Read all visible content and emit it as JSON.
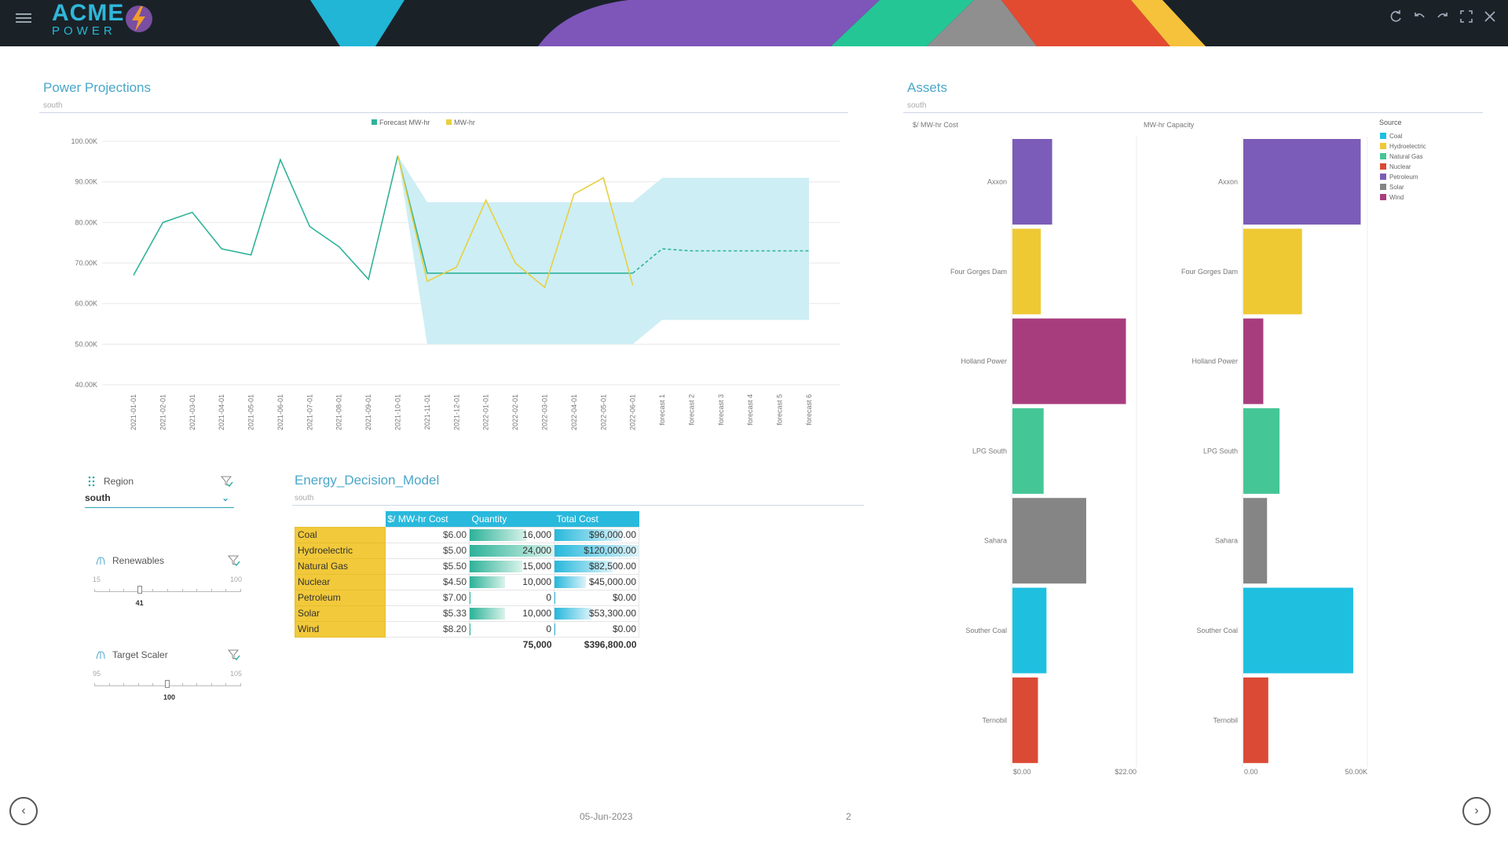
{
  "brand": {
    "line1": "ACME",
    "line2": "POWER"
  },
  "header_icons": [
    "refresh-icon",
    "undo-icon",
    "redo-icon",
    "fullscreen-icon",
    "close-icon"
  ],
  "projections": {
    "title": "Power Projections",
    "subtitle": "south",
    "chart_data": {
      "type": "line",
      "x": [
        "2021-01-01",
        "2021-02-01",
        "2021-03-01",
        "2021-04-01",
        "2021-05-01",
        "2021-06-01",
        "2021-07-01",
        "2021-08-01",
        "2021-09-01",
        "2021-10-01",
        "2021-11-01",
        "2021-12-01",
        "2022-01-01",
        "2022-02-01",
        "2022-03-01",
        "2022-04-01",
        "2022-05-01",
        "2022-06-01",
        "forecast 1",
        "forecast 2",
        "forecast 3",
        "forecast 4",
        "forecast 5",
        "forecast 6"
      ],
      "y_ticks": [
        "100.00K",
        "90.00K",
        "80.00K",
        "70.00K",
        "60.00K",
        "50.00K",
        "40.00K"
      ],
      "ylim": [
        40000,
        100000
      ],
      "legend": [
        "Forecast MW-hr",
        "MW-hr"
      ],
      "series": [
        {
          "name": "Forecast MW-hr",
          "color": "#2fb39a",
          "values": [
            67000,
            80000,
            82500,
            73500,
            72000,
            95500,
            79000,
            74000,
            66000,
            96500,
            67500,
            67500,
            67500,
            67500,
            67500,
            67500,
            67500,
            67500,
            73500,
            73000,
            73000,
            73000,
            73000,
            73000
          ]
        },
        {
          "name": "MW-hr",
          "color": "#e8d040",
          "values": [
            null,
            null,
            null,
            null,
            null,
            null,
            null,
            null,
            null,
            96500,
            65500,
            69000,
            85500,
            70000,
            64000,
            87000,
            91000,
            64500,
            null,
            null,
            null,
            null,
            null,
            null
          ]
        }
      ],
      "band": {
        "color": "#cdeef4",
        "lower": [
          null,
          null,
          null,
          null,
          null,
          null,
          null,
          null,
          null,
          96500,
          50000,
          50000,
          50000,
          50000,
          50000,
          50000,
          50000,
          50000,
          56000,
          56000,
          56000,
          56000,
          56000,
          56000
        ],
        "upper": [
          null,
          null,
          null,
          null,
          null,
          null,
          null,
          null,
          null,
          96500,
          85000,
          85000,
          85000,
          85000,
          85000,
          85000,
          85000,
          85000,
          91000,
          91000,
          91000,
          91000,
          91000,
          91000
        ]
      }
    }
  },
  "filters": {
    "region": {
      "label": "Region",
      "value": "south"
    },
    "renewables": {
      "label": "Renewables",
      "min": "15",
      "max": "100",
      "value": "41",
      "level": 0.31
    },
    "target": {
      "label": "Target Scaler",
      "min": "95",
      "max": "105",
      "value": "100",
      "level": 0.5
    }
  },
  "model": {
    "title": "Energy_Decision_Model",
    "subtitle": "south",
    "columns": [
      "$/ MW-hr Cost",
      "Quantity",
      "Total Cost"
    ],
    "rows": [
      {
        "name": "Coal",
        "cost": "$6.00",
        "qty": "16,000",
        "qty_level": 0.67,
        "total": "$96,000.00",
        "total_level": 0.8
      },
      {
        "name": "Hydroelectric",
        "cost": "$5.00",
        "qty": "24,000",
        "qty_level": 1.0,
        "total": "$120,000.00",
        "total_level": 1.0
      },
      {
        "name": "Natural Gas",
        "cost": "$5.50",
        "qty": "15,000",
        "qty_level": 0.625,
        "total": "$82,500.00",
        "total_level": 0.69
      },
      {
        "name": "Nuclear",
        "cost": "$4.50",
        "qty": "10,000",
        "qty_level": 0.42,
        "total": "$45,000.00",
        "total_level": 0.37
      },
      {
        "name": "Petroleum",
        "cost": "$7.00",
        "qty": "0",
        "qty_level": 0,
        "total": "$0.00",
        "total_level": 0
      },
      {
        "name": "Solar",
        "cost": "$5.33",
        "qty": "10,000",
        "qty_level": 0.42,
        "total": "$53,300.00",
        "total_level": 0.44
      },
      {
        "name": "Wind",
        "cost": "$8.20",
        "qty": "0",
        "qty_level": 0,
        "total": "$0.00",
        "total_level": 0
      }
    ],
    "totals": {
      "qty": "75,000",
      "total": "$396,800.00"
    }
  },
  "assets": {
    "title": "Assets",
    "subtitle": "south",
    "chart_data": [
      {
        "type": "bar",
        "title": "$/ MW-hr Cost",
        "categories": [
          "Axxon",
          "Four Gorges Dam",
          "Holland Power",
          "LPG South",
          "Sahara",
          "Souther Coal",
          "Ternobil"
        ],
        "values": [
          7.0,
          5.0,
          20.0,
          5.5,
          13.0,
          6.0,
          4.5
        ],
        "x_ticks": [
          "$0.00",
          "$22.00"
        ],
        "xlim": [
          0,
          22
        ]
      },
      {
        "type": "bar",
        "title": "MW-hr Capacity",
        "categories": [
          "Axxon",
          "Four Gorges Dam",
          "Holland Power",
          "LPG South",
          "Sahara",
          "Souther Coal",
          "Ternobil"
        ],
        "values": [
          47000,
          23500,
          8000,
          14500,
          9500,
          44000,
          10000
        ],
        "x_ticks": [
          "0.00",
          "50.00K"
        ],
        "xlim": [
          0,
          50000
        ]
      }
    ],
    "colors": [
      "#7b5cb8",
      "#efc933",
      "#a83d7e",
      "#45c696",
      "#858585",
      "#1fbfe0",
      "#db4a35"
    ],
    "legend": {
      "title": "Source",
      "items": [
        {
          "label": "Coal",
          "color": "#1fbfe0"
        },
        {
          "label": "Hydroelectric",
          "color": "#efc933"
        },
        {
          "label": "Natural Gas",
          "color": "#45c696"
        },
        {
          "label": "Nuclear",
          "color": "#db4a35"
        },
        {
          "label": "Petroleum",
          "color": "#7b5cb8"
        },
        {
          "label": "Solar",
          "color": "#858585"
        },
        {
          "label": "Wind",
          "color": "#a83d7e"
        }
      ]
    }
  },
  "footer": {
    "date": "05-Jun-2023",
    "page": "2"
  }
}
